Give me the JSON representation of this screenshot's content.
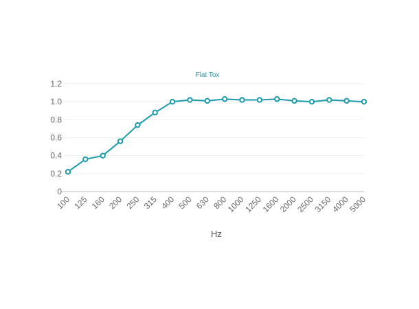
{
  "chart_data": {
    "type": "line",
    "title": "Flat Tox",
    "xlabel": "Hz",
    "ylabel": "",
    "categories": [
      "100",
      "125",
      "160",
      "200",
      "250",
      "315",
      "400",
      "500",
      "630",
      "800",
      "1000",
      "1250",
      "1600",
      "2000",
      "2500",
      "3150",
      "4000",
      "5000"
    ],
    "series": [
      {
        "values": [
          0.22,
          0.36,
          0.4,
          0.56,
          0.74,
          0.88,
          1.0,
          1.02,
          1.01,
          1.03,
          1.02,
          1.02,
          1.03,
          1.01,
          1.0,
          1.02,
          1.01,
          1.0
        ]
      }
    ],
    "ylim": [
      0,
      1.2
    ],
    "yticks": [
      "0",
      "0.2",
      "0.4",
      "0.6",
      "0.8",
      "1.0",
      "1.2"
    ],
    "grid": true,
    "legend": "none",
    "colors": {
      "line": "#1a9aad",
      "title": "#1a9aad",
      "grid": "#eeeeee",
      "axis": "#bbbbbb"
    }
  }
}
